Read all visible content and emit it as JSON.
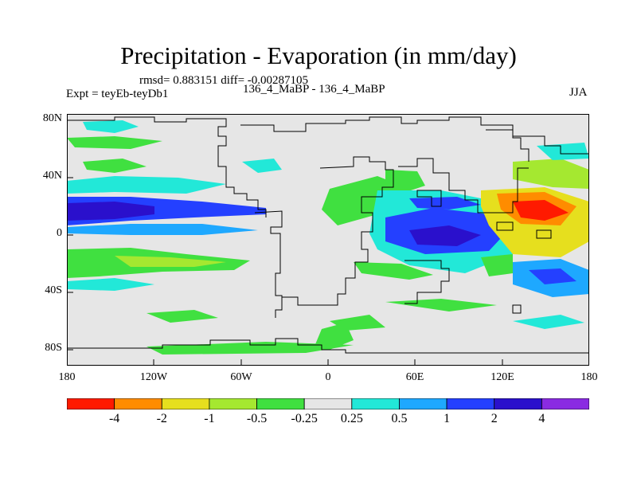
{
  "title": "Precipitation - Evaporation (in mm/day)",
  "stats_text": "rmsd= 0.883151 diff= -0.00287105",
  "left_label": "Expt = teyEb-teyDb1",
  "center_label": "136_4_MaBP - 136_4_MaBP",
  "right_label": "JJA",
  "y_ticks": [
    "80N",
    "40N",
    "0",
    "40S",
    "80S"
  ],
  "x_ticks": [
    "180",
    "120W",
    "60W",
    "0",
    "60E",
    "120E",
    "180"
  ],
  "colorbar": {
    "labels": [
      "-4",
      "-2",
      "-1",
      "-0.5",
      "-0.25",
      "0.25",
      "0.5",
      "1",
      "2",
      "4"
    ],
    "colors": [
      "#ff1a00",
      "#ff8c00",
      "#e6df1e",
      "#a5e830",
      "#40e040",
      "#e6e6e6",
      "#22e8d8",
      "#1ea8ff",
      "#2440ff",
      "#2a10cc",
      "#8a2be2"
    ]
  },
  "colors": {
    "background": "#e6e6e6",
    "coastline": "#000000"
  }
}
